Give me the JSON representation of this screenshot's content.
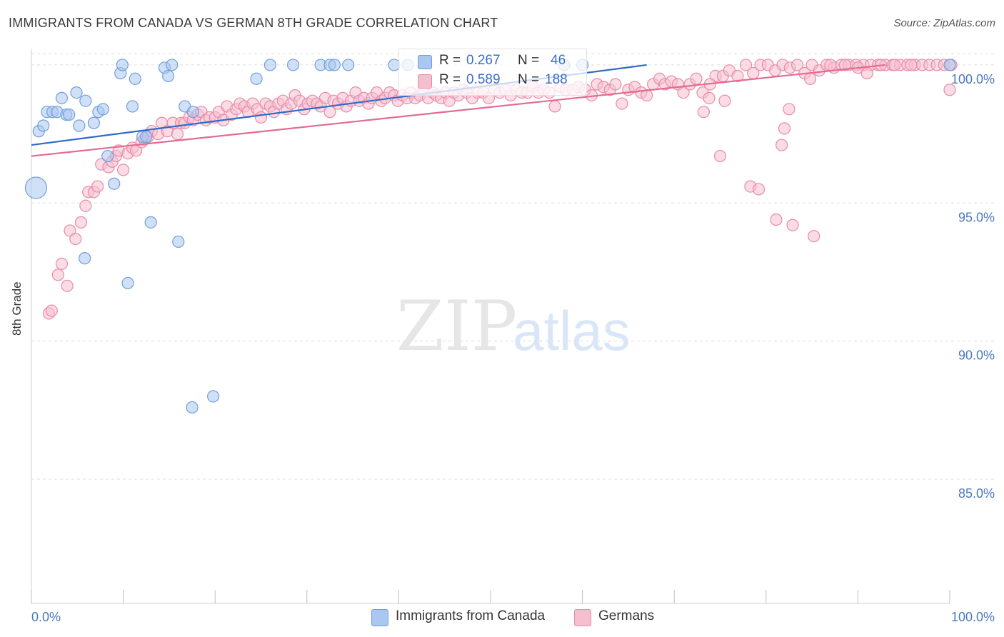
{
  "header": {
    "title": "IMMIGRANTS FROM CANADA VS GERMAN 8TH GRADE CORRELATION CHART",
    "source": "Source: ZipAtlas.com"
  },
  "watermark": {
    "zip": "ZIP",
    "atlas": "atlas"
  },
  "legend": {
    "blue": {
      "r_label": "R = ",
      "r_value": "0.267",
      "n_label": "N = ",
      "n_value": "46"
    },
    "pink": {
      "r_label": "R = ",
      "r_value": "0.589",
      "n_label": "N = ",
      "n_value": "188"
    }
  },
  "colors": {
    "blue_fill": "#a9c7ef",
    "blue_stroke": "#6f9fdc",
    "blue_line": "#2e6cc8",
    "pink_fill": "#f6bfcf",
    "pink_stroke": "#e98aa8",
    "pink_line": "#e46a93",
    "grid": "#dcdcdc",
    "tick_text": "#4a78c2"
  },
  "chart_data": {
    "type": "scatter",
    "title": "IMMIGRANTS FROM CANADA VS GERMAN 8TH GRADE CORRELATION CHART",
    "xlabel": "",
    "ylabel": "8th Grade",
    "xlim": [
      0,
      100
    ],
    "ylim": [
      80.5,
      100.8
    ],
    "x_tick_labels": [
      "0.0%",
      "100.0%"
    ],
    "y_ticks": [
      85,
      90,
      95,
      100
    ],
    "y_tick_labels": [
      "85.0%",
      "90.0%",
      "95.0%",
      "100.0%"
    ],
    "grid": "horizontal dashed",
    "legend_position": "bottom",
    "series": [
      {
        "name": "Immigrants from Canada",
        "color": "blue",
        "R": 0.267,
        "N": 46,
        "trend": {
          "x": [
            0,
            67
          ],
          "y": [
            97.1,
            100.0
          ]
        },
        "points": [
          [
            0.5,
            95.55,
            3
          ],
          [
            0.8,
            97.6,
            1
          ],
          [
            1.3,
            97.8,
            1
          ],
          [
            1.7,
            98.3,
            1
          ],
          [
            2.3,
            98.3,
            1
          ],
          [
            2.8,
            98.3,
            1
          ],
          [
            3.3,
            98.8,
            1
          ],
          [
            3.8,
            98.2,
            1
          ],
          [
            4.1,
            98.2,
            1
          ],
          [
            4.9,
            99.0,
            1
          ],
          [
            5.2,
            97.8,
            1
          ],
          [
            5.9,
            98.7,
            1
          ],
          [
            6.8,
            97.9,
            1
          ],
          [
            7.3,
            98.3,
            1
          ],
          [
            7.8,
            98.4,
            1
          ],
          [
            8.3,
            96.7,
            1
          ],
          [
            9.0,
            95.7,
            1
          ],
          [
            9.7,
            99.7,
            1
          ],
          [
            9.9,
            100.0,
            1
          ],
          [
            10.5,
            92.1,
            1
          ],
          [
            11.0,
            98.5,
            1
          ],
          [
            11.3,
            99.5,
            1
          ],
          [
            12.1,
            97.4,
            1
          ],
          [
            12.5,
            97.4,
            1
          ],
          [
            13.0,
            94.3,
            1
          ],
          [
            14.5,
            99.9,
            1
          ],
          [
            14.9,
            99.6,
            1
          ],
          [
            15.3,
            100.0,
            1
          ],
          [
            16.0,
            93.6,
            1
          ],
          [
            16.7,
            98.5,
            1
          ],
          [
            17.5,
            87.6,
            1
          ],
          [
            17.6,
            98.3,
            1
          ],
          [
            19.8,
            88.0,
            1
          ],
          [
            24.5,
            99.5,
            1
          ],
          [
            26.0,
            100.0,
            1
          ],
          [
            28.5,
            100.0,
            1
          ],
          [
            31.5,
            100.0,
            1
          ],
          [
            32.5,
            100.0,
            1
          ],
          [
            33.0,
            100.0,
            1
          ],
          [
            34.5,
            100.0,
            1
          ],
          [
            39.5,
            100.0,
            1
          ],
          [
            41.0,
            100.0,
            1
          ],
          [
            58.0,
            100.0,
            1
          ],
          [
            60.0,
            100.0,
            1
          ],
          [
            5.8,
            93.0,
            1
          ],
          [
            100.0,
            100.0,
            1
          ]
        ]
      },
      {
        "name": "Germans",
        "color": "pink",
        "R": 0.589,
        "N": 188,
        "trend": {
          "x": [
            0,
            93
          ],
          "y": [
            96.7,
            100.0
          ]
        },
        "points": [
          [
            1.9,
            91.0,
            1
          ],
          [
            2.2,
            91.1,
            1
          ],
          [
            2.9,
            92.4,
            1
          ],
          [
            3.3,
            92.8,
            1
          ],
          [
            3.9,
            92.0,
            1
          ],
          [
            4.2,
            94.0,
            1
          ],
          [
            4.8,
            93.7,
            1
          ],
          [
            5.4,
            94.3,
            1
          ],
          [
            5.9,
            94.9,
            1
          ],
          [
            6.2,
            95.4,
            1
          ],
          [
            6.8,
            95.4,
            1
          ],
          [
            7.2,
            95.6,
            1
          ],
          [
            7.6,
            96.4,
            1
          ],
          [
            8.4,
            96.3,
            1
          ],
          [
            8.8,
            96.5,
            1
          ],
          [
            9.2,
            96.7,
            1
          ],
          [
            9.5,
            96.9,
            1
          ],
          [
            10.0,
            96.2,
            1
          ],
          [
            10.5,
            96.8,
            1
          ],
          [
            11.0,
            97.0,
            1
          ],
          [
            11.4,
            96.9,
            1
          ],
          [
            12.0,
            97.2,
            1
          ],
          [
            12.3,
            97.3,
            1
          ],
          [
            12.7,
            97.4,
            1
          ],
          [
            13.1,
            97.6,
            1
          ],
          [
            13.8,
            97.5,
            1
          ],
          [
            14.2,
            97.9,
            1
          ],
          [
            14.8,
            97.6,
            1
          ],
          [
            15.4,
            97.9,
            1
          ],
          [
            15.9,
            97.5,
            1
          ],
          [
            16.3,
            97.9,
            1
          ],
          [
            16.7,
            97.9,
            1
          ],
          [
            17.2,
            98.1,
            1
          ],
          [
            17.6,
            98.0,
            1
          ],
          [
            18.1,
            98.2,
            1
          ],
          [
            18.5,
            98.3,
            1
          ],
          [
            19.0,
            98.0,
            1
          ],
          [
            19.4,
            98.1,
            1
          ],
          [
            20.0,
            98.1,
            1
          ],
          [
            20.4,
            98.3,
            1
          ],
          [
            20.9,
            98.0,
            1
          ],
          [
            21.3,
            98.5,
            1
          ],
          [
            21.8,
            98.2,
            1
          ],
          [
            22.3,
            98.4,
            1
          ],
          [
            22.7,
            98.6,
            1
          ],
          [
            23.2,
            98.5,
            1
          ],
          [
            23.6,
            98.3,
            1
          ],
          [
            24.1,
            98.6,
            1
          ],
          [
            24.6,
            98.4,
            1
          ],
          [
            25.0,
            98.1,
            1
          ],
          [
            25.5,
            98.6,
            1
          ],
          [
            26.0,
            98.5,
            1
          ],
          [
            26.4,
            98.3,
            1
          ],
          [
            26.9,
            98.6,
            1
          ],
          [
            27.4,
            98.7,
            1
          ],
          [
            27.8,
            98.4,
            1
          ],
          [
            28.3,
            98.6,
            1
          ],
          [
            28.7,
            98.9,
            1
          ],
          [
            29.2,
            98.7,
            1
          ],
          [
            29.7,
            98.4,
            1
          ],
          [
            30.1,
            98.6,
            1
          ],
          [
            30.6,
            98.7,
            1
          ],
          [
            31.1,
            98.6,
            1
          ],
          [
            31.5,
            98.5,
            1
          ],
          [
            32.0,
            98.8,
            1
          ],
          [
            32.5,
            98.3,
            1
          ],
          [
            32.9,
            98.7,
            1
          ],
          [
            33.4,
            98.6,
            1
          ],
          [
            33.9,
            98.8,
            1
          ],
          [
            34.3,
            98.5,
            1
          ],
          [
            34.8,
            98.7,
            1
          ],
          [
            35.3,
            99.0,
            1
          ],
          [
            35.7,
            98.7,
            1
          ],
          [
            36.2,
            98.8,
            1
          ],
          [
            36.7,
            98.6,
            1
          ],
          [
            37.1,
            98.8,
            1
          ],
          [
            37.6,
            99.0,
            1
          ],
          [
            38.1,
            98.7,
            1
          ],
          [
            38.5,
            98.8,
            1
          ],
          [
            39.0,
            99.0,
            1
          ],
          [
            39.5,
            98.9,
            1
          ],
          [
            39.9,
            98.7,
            1
          ],
          [
            40.4,
            98.9,
            1
          ],
          [
            40.9,
            98.8,
            1
          ],
          [
            41.3,
            99.0,
            1
          ],
          [
            41.8,
            98.8,
            1
          ],
          [
            42.3,
            98.9,
            1
          ],
          [
            42.7,
            99.1,
            1
          ],
          [
            43.2,
            98.8,
            1
          ],
          [
            43.7,
            99.0,
            1
          ],
          [
            44.1,
            98.9,
            1
          ],
          [
            44.6,
            98.8,
            1
          ],
          [
            45.1,
            99.0,
            1
          ],
          [
            45.5,
            98.7,
            1
          ],
          [
            46.0,
            99.0,
            1
          ],
          [
            46.5,
            98.9,
            1
          ],
          [
            47.0,
            99.1,
            1
          ],
          [
            47.4,
            99.0,
            1
          ],
          [
            48.0,
            98.8,
            1
          ],
          [
            48.6,
            99.0,
            1
          ],
          [
            49.2,
            99.0,
            1
          ],
          [
            49.8,
            98.8,
            1
          ],
          [
            50.4,
            99.1,
            1
          ],
          [
            51.0,
            99.0,
            1
          ],
          [
            51.6,
            99.1,
            1
          ],
          [
            52.2,
            98.9,
            1
          ],
          [
            52.8,
            99.1,
            1
          ],
          [
            53.4,
            99.0,
            1
          ],
          [
            54.0,
            99.0,
            1
          ],
          [
            54.6,
            99.2,
            1
          ],
          [
            55.2,
            99.0,
            1
          ],
          [
            55.8,
            99.1,
            1
          ],
          [
            56.4,
            99.0,
            1
          ],
          [
            57.0,
            98.5,
            1
          ],
          [
            57.6,
            99.2,
            1
          ],
          [
            58.2,
            99.1,
            1
          ],
          [
            59.0,
            99.1,
            1
          ],
          [
            59.6,
            99.2,
            1
          ],
          [
            60.3,
            99.1,
            1
          ],
          [
            61.0,
            98.9,
            1
          ],
          [
            61.6,
            99.3,
            1
          ],
          [
            62.3,
            99.2,
            1
          ],
          [
            63.0,
            99.1,
            1
          ],
          [
            63.6,
            99.3,
            1
          ],
          [
            64.3,
            98.6,
            1
          ],
          [
            65.0,
            99.1,
            1
          ],
          [
            65.7,
            99.2,
            1
          ],
          [
            66.4,
            99.0,
            1
          ],
          [
            67.0,
            98.9,
            1
          ],
          [
            67.7,
            99.3,
            1
          ],
          [
            68.4,
            99.5,
            1
          ],
          [
            69.0,
            99.3,
            1
          ],
          [
            69.7,
            99.4,
            1
          ],
          [
            70.4,
            99.3,
            1
          ],
          [
            71.0,
            99.0,
            1
          ],
          [
            71.7,
            99.3,
            1
          ],
          [
            72.4,
            99.5,
            1
          ],
          [
            73.1,
            99.0,
            1
          ],
          [
            73.8,
            98.8,
            1
          ],
          [
            74.5,
            99.6,
            1
          ],
          [
            75.3,
            99.6,
            1
          ],
          [
            76.0,
            99.8,
            1
          ],
          [
            76.9,
            99.6,
            1
          ],
          [
            77.8,
            100.0,
            1
          ],
          [
            78.6,
            99.7,
            1
          ],
          [
            79.4,
            100.0,
            1
          ],
          [
            80.2,
            100.0,
            1
          ],
          [
            81.0,
            99.8,
            1
          ],
          [
            81.8,
            100.0,
            1
          ],
          [
            82.6,
            99.9,
            1
          ],
          [
            83.4,
            100.0,
            1
          ],
          [
            84.2,
            99.7,
            1
          ],
          [
            85.0,
            100.0,
            1
          ],
          [
            85.8,
            99.8,
            1
          ],
          [
            86.6,
            100.0,
            1
          ],
          [
            87.4,
            99.9,
            1
          ],
          [
            88.2,
            100.0,
            1
          ],
          [
            89.0,
            100.0,
            1
          ],
          [
            89.8,
            100.0,
            1
          ],
          [
            90.6,
            100.0,
            1
          ],
          [
            91.4,
            100.0,
            1
          ],
          [
            92.2,
            100.0,
            1
          ],
          [
            93.0,
            100.0,
            1
          ],
          [
            93.8,
            100.0,
            1
          ],
          [
            94.6,
            100.0,
            1
          ],
          [
            95.4,
            100.0,
            1
          ],
          [
            96.2,
            100.0,
            1
          ],
          [
            97.0,
            100.0,
            1
          ],
          [
            97.8,
            100.0,
            1
          ],
          [
            98.6,
            100.0,
            1
          ],
          [
            99.4,
            100.0,
            1
          ],
          [
            100.2,
            100.0,
            1
          ],
          [
            100.0,
            99.1,
            1
          ],
          [
            73.9,
            99.3,
            1
          ],
          [
            75.0,
            96.7,
            1
          ],
          [
            78.3,
            95.6,
            1
          ],
          [
            79.2,
            95.5,
            1
          ],
          [
            81.1,
            94.4,
            1
          ],
          [
            82.9,
            94.2,
            1
          ],
          [
            85.2,
            93.8,
            1
          ],
          [
            82.0,
            97.7,
            1
          ],
          [
            81.7,
            97.1,
            1
          ],
          [
            84.8,
            99.5,
            1
          ],
          [
            75.5,
            98.7,
            1
          ],
          [
            73.2,
            98.3,
            1
          ],
          [
            82.5,
            98.4,
            1
          ],
          [
            87.0,
            100.0,
            1
          ],
          [
            88.6,
            100.0,
            1
          ],
          [
            90.0,
            99.9,
            1
          ],
          [
            91.0,
            99.7,
            1
          ],
          [
            92.5,
            100.0,
            1
          ],
          [
            94.0,
            100.0,
            1
          ],
          [
            95.8,
            100.0,
            1
          ]
        ]
      }
    ]
  },
  "bottom_legend": [
    {
      "label": "Immigrants from Canada",
      "color": "blue"
    },
    {
      "label": "Germans",
      "color": "pink"
    }
  ]
}
